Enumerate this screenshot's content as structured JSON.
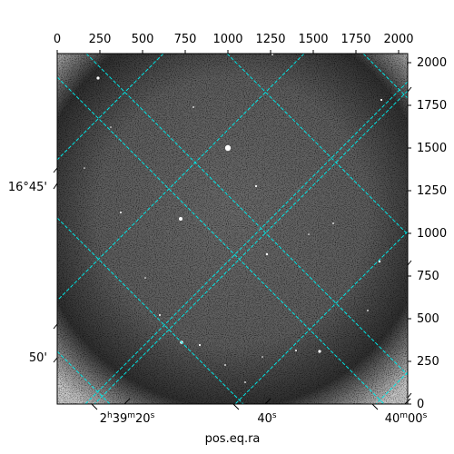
{
  "figure": {
    "xlabel": "pos.eq.ra",
    "top_axis_ticks": [
      "0",
      "250",
      "500",
      "750",
      "1000",
      "1250",
      "1500",
      "1750",
      "2000"
    ],
    "right_axis_ticks": [
      "0",
      "250",
      "500",
      "750",
      "1000",
      "1250",
      "1500",
      "1750",
      "2000"
    ],
    "ra_ticks": [
      {
        "h": "2",
        "m": "39",
        "s": "20",
        "unit_m": "m",
        "unit_h": "h",
        "unit_s": "s"
      },
      {
        "s": "40",
        "unit_s": "s"
      },
      {
        "m": "40",
        "s": "00",
        "unit_m": "m",
        "unit_s": "s"
      }
    ],
    "dec_ticks": [
      "16°45'",
      "50'"
    ],
    "colors": {
      "grid": "#00e5e5",
      "frame": "#000000",
      "background": "#ffffff"
    }
  }
}
